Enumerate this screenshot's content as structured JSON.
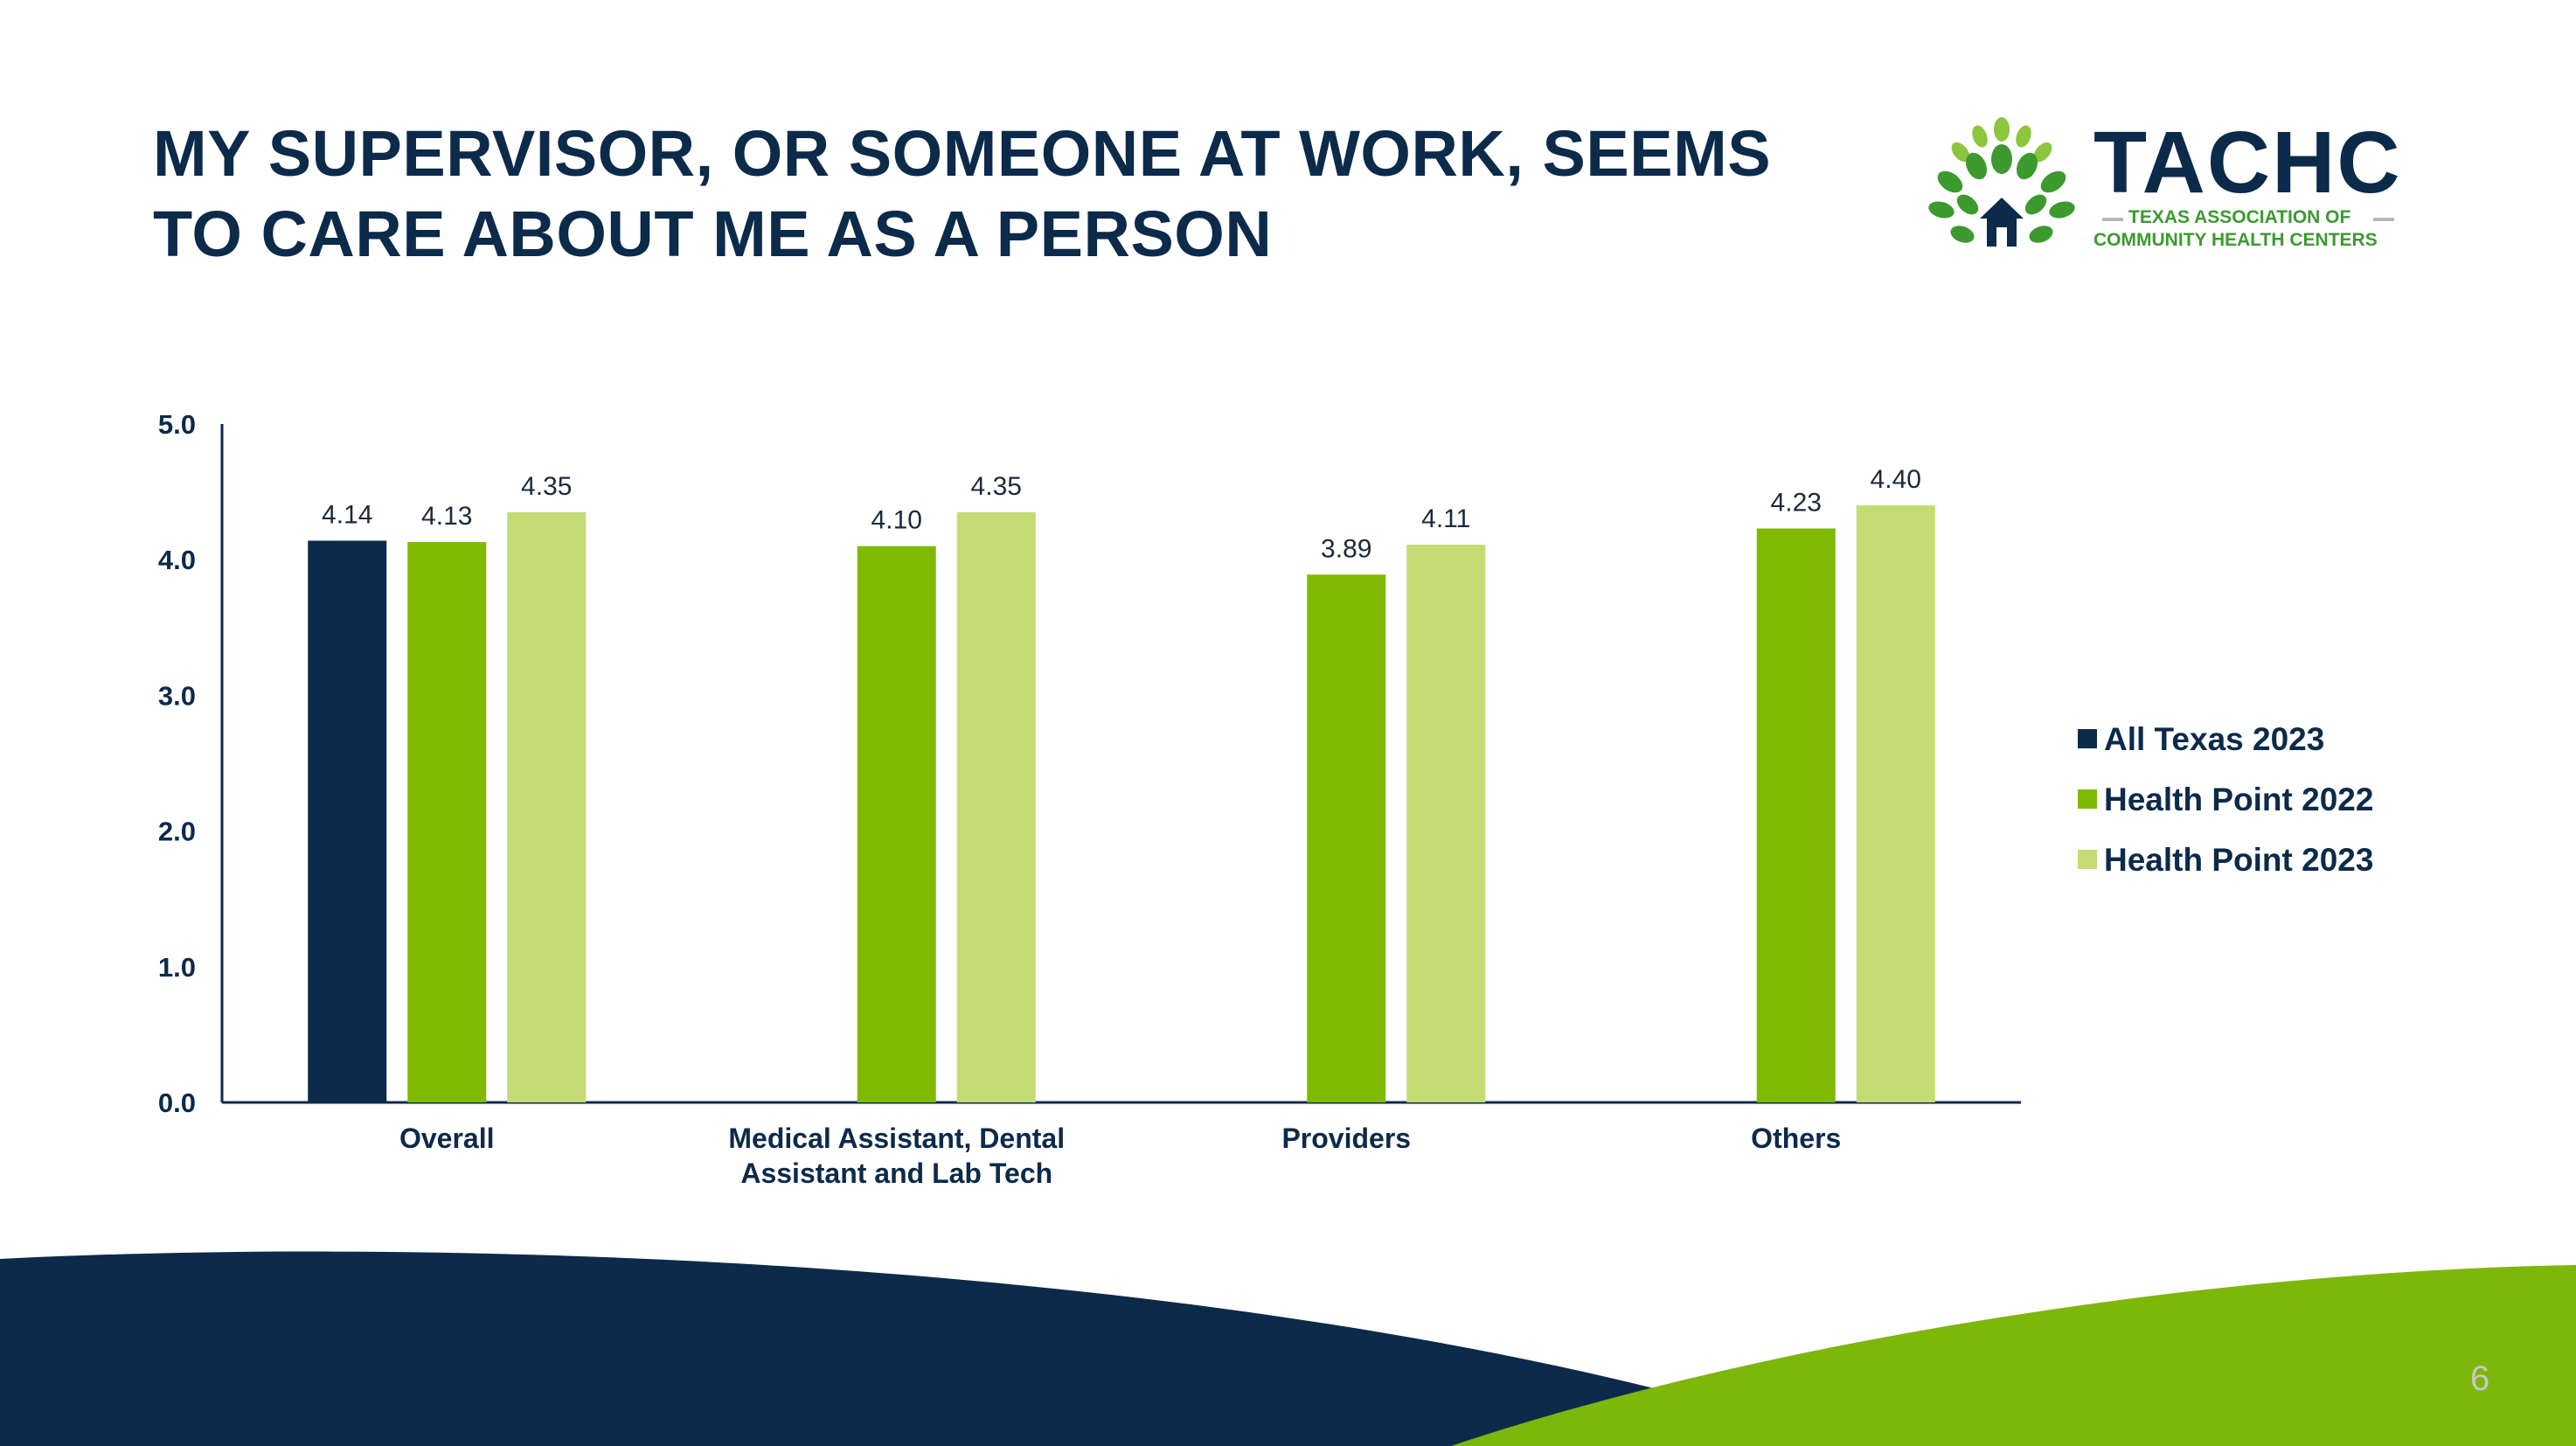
{
  "slide": {
    "title_line1": "MY SUPERVISOR, OR SOMEONE AT WORK, SEEMS",
    "title_line2": "TO CARE ABOUT ME AS A PERSON",
    "page_number": "6"
  },
  "logo": {
    "wordmark": "TACHC",
    "tagline_line1": "TEXAS ASSOCIATION OF",
    "tagline_line2": "COMMUNITY HEALTH CENTERS",
    "icon": "tree-house-icon",
    "colors": {
      "navy": "#0c2a4a",
      "green": "#3c9a2f",
      "light_green": "#8cc63f"
    }
  },
  "colors": {
    "navy": "#0c2a4a",
    "green": "#7fba00",
    "light_green": "#c3dc73",
    "wave_green": "#7cb70a"
  },
  "chart_data": {
    "type": "bar",
    "categories": [
      "Overall",
      "Medical Assistant, Dental Assistant and Lab Tech",
      "Providers",
      "Others"
    ],
    "category_lines": [
      [
        "Overall"
      ],
      [
        "Medical Assistant, Dental",
        "Assistant and Lab Tech"
      ],
      [
        "Providers"
      ],
      [
        "Others"
      ]
    ],
    "series": [
      {
        "name": "All Texas 2023",
        "color": "#0c2a4a",
        "values": [
          4.14,
          null,
          null,
          null
        ],
        "labels": [
          "4.14",
          "",
          "",
          ""
        ]
      },
      {
        "name": "Health Point 2022",
        "color": "#7fba00",
        "values": [
          4.13,
          4.1,
          3.89,
          4.23
        ],
        "labels": [
          "4.13",
          "4.10",
          "3.89",
          "4.23"
        ]
      },
      {
        "name": "Health Point 2023",
        "color": "#c3dc73",
        "values": [
          4.35,
          4.35,
          4.11,
          4.4
        ],
        "labels": [
          "4.35",
          "4.35",
          "4.11",
          "4.40"
        ]
      }
    ],
    "yticks": [
      "0.0",
      "1.0",
      "2.0",
      "3.0",
      "4.0",
      "5.0"
    ],
    "ylim": [
      0,
      5
    ],
    "grid": false,
    "legend_position": "right"
  }
}
